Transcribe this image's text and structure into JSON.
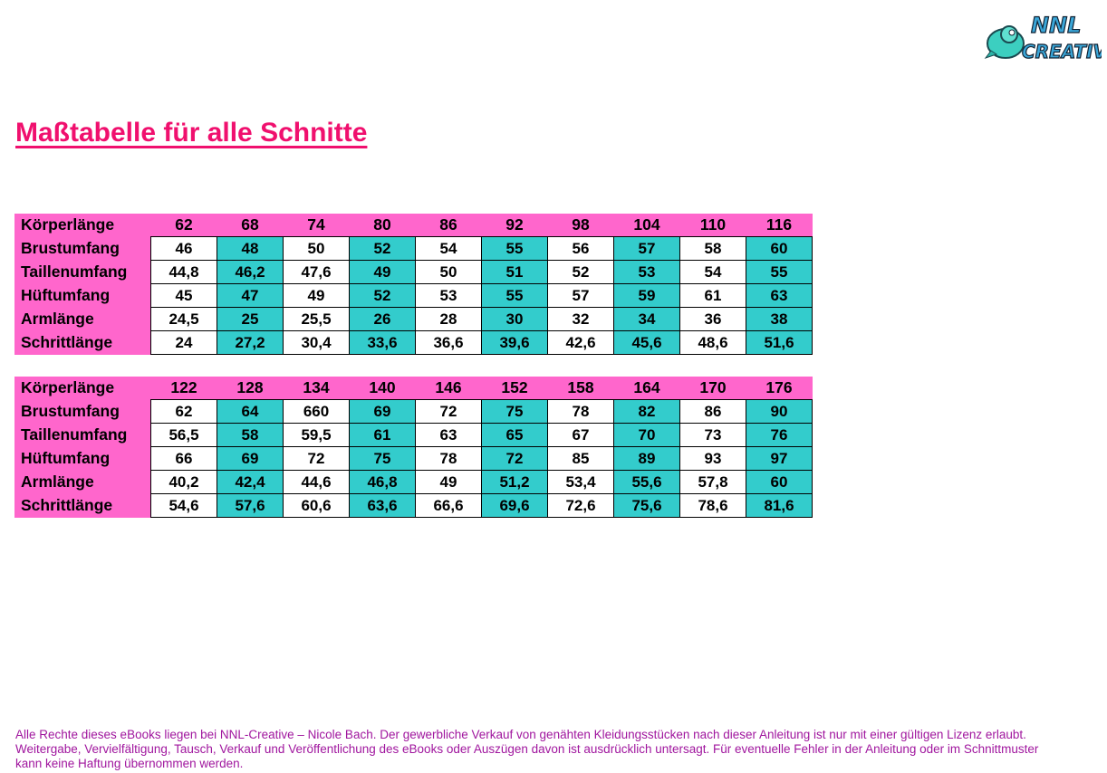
{
  "logo": {
    "text": "NNL Creative"
  },
  "title": "Maßtabelle für alle Schnitte",
  "colors": {
    "header": "#ff66cc",
    "alt_cell": "#33cccc",
    "title": "#f0106e",
    "footer": "#a0169e"
  },
  "tables": [
    {
      "header_label": "Körperlänge",
      "sizes": [
        "62",
        "68",
        "74",
        "80",
        "86",
        "92",
        "98",
        "104",
        "110",
        "116"
      ],
      "rows": [
        {
          "label": "Brustumfang",
          "values": [
            "46",
            "48",
            "50",
            "52",
            "54",
            "55",
            "56",
            "57",
            "58",
            "60"
          ]
        },
        {
          "label": "Taillenumfang",
          "values": [
            "44,8",
            "46,2",
            "47,6",
            "49",
            "50",
            "51",
            "52",
            "53",
            "54",
            "55"
          ]
        },
        {
          "label": "Hüftumfang",
          "values": [
            "45",
            "47",
            "49",
            "52",
            "53",
            "55",
            "57",
            "59",
            "61",
            "63"
          ]
        },
        {
          "label": "Armlänge",
          "values": [
            "24,5",
            "25",
            "25,5",
            "26",
            "28",
            "30",
            "32",
            "34",
            "36",
            "38"
          ]
        },
        {
          "label": "Schrittlänge",
          "values": [
            "24",
            "27,2",
            "30,4",
            "33,6",
            "36,6",
            "39,6",
            "42,6",
            "45,6",
            "48,6",
            "51,6"
          ]
        }
      ]
    },
    {
      "header_label": "Körperlänge",
      "sizes": [
        "122",
        "128",
        "134",
        "140",
        "146",
        "152",
        "158",
        "164",
        "170",
        "176"
      ],
      "rows": [
        {
          "label": "Brustumfang",
          "values": [
            "62",
            "64",
            "660",
            "69",
            "72",
            "75",
            "78",
            "82",
            "86",
            "90"
          ]
        },
        {
          "label": "Taillenumfang",
          "values": [
            "56,5",
            "58",
            "59,5",
            "61",
            "63",
            "65",
            "67",
            "70",
            "73",
            "76"
          ]
        },
        {
          "label": "Hüftumfang",
          "values": [
            "66",
            "69",
            "72",
            "75",
            "78",
            "72",
            "85",
            "89",
            "93",
            "97"
          ]
        },
        {
          "label": "Armlänge",
          "values": [
            "40,2",
            "42,4",
            "44,6",
            "46,8",
            "49",
            "51,2",
            "53,4",
            "55,6",
            "57,8",
            "60"
          ]
        },
        {
          "label": "Schrittlänge",
          "values": [
            "54,6",
            "57,6",
            "60,6",
            "63,6",
            "66,6",
            "69,6",
            "72,6",
            "75,6",
            "78,6",
            "81,6"
          ]
        }
      ]
    }
  ],
  "footer": "Alle Rechte dieses eBooks liegen bei NNL-Creative – Nicole Bach. Der gewerbliche Verkauf von genähten Kleidungsstücken nach dieser Anleitung ist nur mit einer gültigen Lizenz erlaubt. Weitergabe, Vervielfältigung, Tausch, Verkauf und Veröffentlichung des eBooks oder Auszügen davon ist ausdrücklich untersagt. Für eventuelle Fehler in der Anleitung oder im Schnittmuster kann keine Haftung übernommen werden."
}
